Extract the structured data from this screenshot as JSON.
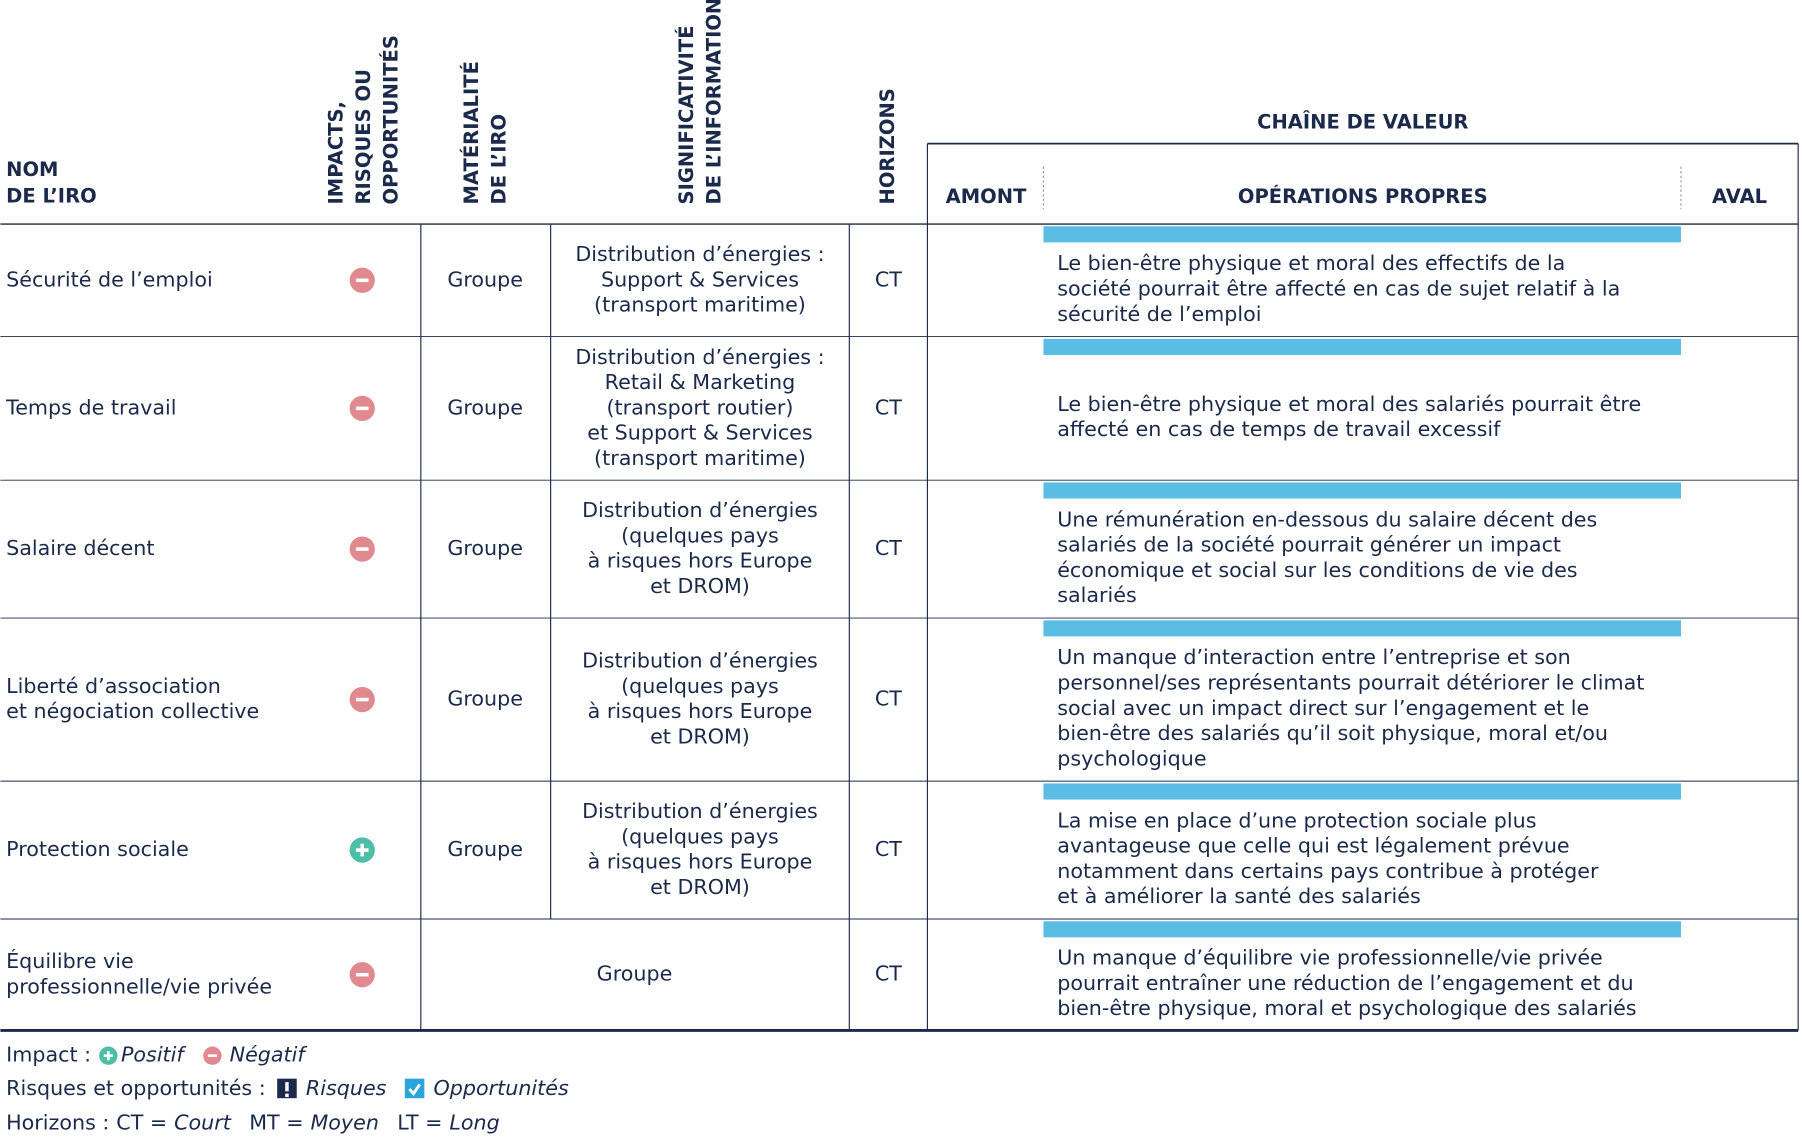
{
  "header": {
    "name": [
      "NOM",
      "DE L’IRO"
    ],
    "impacts": [
      "IMPACTS,",
      "RISQUES OU",
      "OPPORTUNITÉS"
    ],
    "materiality": [
      "MATÉRIALITÉ",
      "DE L’IRO"
    ],
    "significance": [
      "SIGNIFICATIVITÉ",
      "DE L’INFORMATION"
    ],
    "horizons": "HORIZONS",
    "value_chain": "CHAÎNE DE VALEUR",
    "upstream": "AMONT",
    "own_operations": "OPÉRATIONS PROPRES",
    "downstream": "AVAL"
  },
  "rows": [
    {
      "name": [
        "Sécurité de l’emploi"
      ],
      "impact": "Négatif",
      "materiality": "Groupe",
      "significance": [
        "Distribution d’énergies :",
        "Support & Services",
        "(transport maritime)"
      ],
      "horizon": "CT",
      "description": [
        "Le bien-être physique et moral des effectifs de la",
        "société pourrait être affecté en cas de sujet relatif à la",
        "sécurité de l’emploi"
      ]
    },
    {
      "name": [
        "Temps de travail"
      ],
      "impact": "Négatif",
      "materiality": "Groupe",
      "significance": [
        "Distribution d’énergies :",
        "Retail & Marketing",
        "(transport routier)",
        "et Support & Services",
        "(transport maritime)"
      ],
      "horizon": "CT",
      "description": [
        "Le bien-être physique et moral des salariés pourrait être",
        "affecté en cas de temps de travail excessif"
      ]
    },
    {
      "name": [
        "Salaire décent"
      ],
      "impact": "Négatif",
      "materiality": "Groupe",
      "significance": [
        "Distribution d’énergies",
        "(quelques pays",
        "à risques hors Europe",
        "et DROM)"
      ],
      "horizon": "CT",
      "description": [
        "Une rémunération en-dessous du salaire décent des",
        "salariés de la société pourrait générer un impact",
        "économique et social sur les conditions de vie des",
        "salariés"
      ]
    },
    {
      "name": [
        "Liberté d’association",
        "et négociation collective"
      ],
      "impact": "Négatif",
      "materiality": "Groupe",
      "significance": [
        "Distribution d’énergies",
        "(quelques pays",
        "à risques hors Europe",
        "et DROM)"
      ],
      "horizon": "CT",
      "description": [
        "Un manque d’interaction entre l’entreprise et son",
        "personnel/ses représentants pourrait détériorer le climat",
        "social avec un impact direct sur l’engagement et le",
        "bien-être des salariés qu’il soit physique, moral et/ou",
        "psychologique"
      ]
    },
    {
      "name": [
        "Protection sociale"
      ],
      "impact": "Positif",
      "materiality": "Groupe",
      "significance": [
        "Distribution d’énergies",
        "(quelques pays",
        "à risques hors Europe",
        "et DROM)"
      ],
      "horizon": "CT",
      "description": [
        "La mise en place d’une protection sociale plus",
        "avantageuse que celle qui est légalement prévue",
        "notamment dans certains pays contribue à protéger",
        "et à améliorer la santé des salariés"
      ]
    },
    {
      "name": [
        "Équilibre vie",
        "professionnelle/vie privée"
      ],
      "impact": "Négatif",
      "materiality": "Groupe",
      "horizon": "CT",
      "description": [
        "Un manque d’équilibre vie professionnelle/vie privée",
        "pourrait entraîner une réduction de l’engagement et du",
        "bien-être physique, moral et psychologique des salariés"
      ]
    }
  ],
  "legend": {
    "impact": {
      "label": "Impact :",
      "positive": "Positif",
      "negative": "Négatif"
    },
    "risks": {
      "label": "Risques et opportunités :",
      "risks": "Risques",
      "opportunities": "Opportunités"
    },
    "horizons": {
      "label": "Horizons :",
      "items": [
        {
          "code": "CT =",
          "term": "Court"
        },
        {
          "code": "MT =",
          "term": "Moyen"
        },
        {
          "code": "LT =",
          "term": "Long"
        }
      ]
    }
  }
}
